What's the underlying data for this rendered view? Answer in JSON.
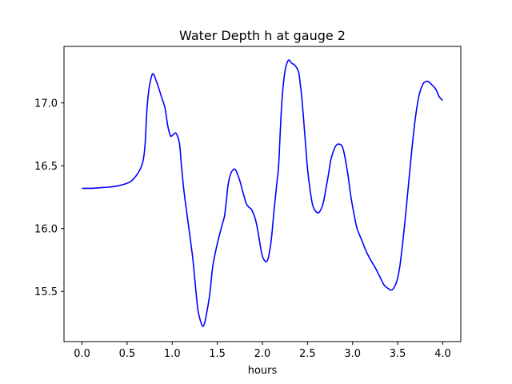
{
  "chart_data": {
    "type": "line",
    "title": "Water Depth h at gauge 2",
    "xlabel": "hours",
    "ylabel": "",
    "xlim": [
      -0.2,
      4.2
    ],
    "ylim": [
      15.1,
      17.45
    ],
    "grid": false,
    "xticks": [
      0.0,
      0.5,
      1.0,
      1.5,
      2.0,
      2.5,
      3.0,
      3.5,
      4.0
    ],
    "xtick_labels": [
      "0.0",
      "0.5",
      "1.0",
      "1.5",
      "2.0",
      "2.5",
      "3.0",
      "3.5",
      "4.0"
    ],
    "yticks": [
      15.5,
      16.0,
      16.5,
      17.0
    ],
    "ytick_labels": [
      "15.5",
      "16.0",
      "16.5",
      "17.0"
    ],
    "series": [
      {
        "color": "#0000ff",
        "x": [
          0.0,
          0.1,
          0.2,
          0.3,
          0.4,
          0.5,
          0.55,
          0.6,
          0.65,
          0.68,
          0.7,
          0.72,
          0.74,
          0.76,
          0.78,
          0.8,
          0.82,
          0.85,
          0.88,
          0.92,
          0.95,
          0.98,
          1.0,
          1.03,
          1.05,
          1.08,
          1.1,
          1.13,
          1.17,
          1.2,
          1.23,
          1.25,
          1.28,
          1.3,
          1.32,
          1.34,
          1.36,
          1.38,
          1.4,
          1.42,
          1.45,
          1.5,
          1.55,
          1.58,
          1.6,
          1.62,
          1.65,
          1.68,
          1.7,
          1.72,
          1.75,
          1.78,
          1.8,
          1.82,
          1.85,
          1.88,
          1.92,
          1.95,
          1.98,
          2.0,
          2.03,
          2.05,
          2.07,
          2.1,
          2.13,
          2.16,
          2.18,
          2.2,
          2.22,
          2.25,
          2.28,
          2.3,
          2.32,
          2.34,
          2.36,
          2.4,
          2.42,
          2.44,
          2.47,
          2.5,
          2.53,
          2.56,
          2.6,
          2.63,
          2.66,
          2.68,
          2.7,
          2.73,
          2.76,
          2.8,
          2.83,
          2.86,
          2.88,
          2.9,
          2.92,
          2.95,
          2.98,
          3.02,
          3.05,
          3.1,
          3.15,
          3.2,
          3.25,
          3.3,
          3.35,
          3.4,
          3.43,
          3.46,
          3.49,
          3.52,
          3.55,
          3.58,
          3.62,
          3.66,
          3.7,
          3.74,
          3.78,
          3.81,
          3.84,
          3.87,
          3.9,
          3.93,
          3.96,
          4.0
        ],
        "y": [
          16.32,
          16.32,
          16.325,
          16.33,
          16.34,
          16.36,
          16.38,
          16.42,
          16.48,
          16.55,
          16.68,
          16.95,
          17.1,
          17.18,
          17.23,
          17.22,
          17.18,
          17.12,
          17.05,
          16.96,
          16.82,
          16.74,
          16.74,
          16.76,
          16.75,
          16.68,
          16.52,
          16.3,
          16.08,
          15.92,
          15.75,
          15.6,
          15.38,
          15.3,
          15.25,
          15.22,
          15.25,
          15.32,
          15.4,
          15.5,
          15.7,
          15.88,
          16.02,
          16.1,
          16.22,
          16.35,
          16.44,
          16.47,
          16.47,
          16.44,
          16.38,
          16.3,
          16.25,
          16.2,
          16.17,
          16.15,
          16.08,
          15.98,
          15.85,
          15.78,
          15.74,
          15.74,
          15.78,
          15.92,
          16.15,
          16.36,
          16.5,
          16.8,
          17.05,
          17.25,
          17.33,
          17.34,
          17.32,
          17.31,
          17.3,
          17.25,
          17.15,
          17.02,
          16.75,
          16.48,
          16.3,
          16.18,
          16.13,
          16.13,
          16.17,
          16.22,
          16.3,
          16.42,
          16.55,
          16.64,
          16.67,
          16.67,
          16.66,
          16.62,
          16.55,
          16.42,
          16.26,
          16.1,
          16.0,
          15.91,
          15.82,
          15.75,
          15.69,
          15.62,
          15.55,
          15.52,
          15.51,
          15.53,
          15.58,
          15.68,
          15.85,
          16.05,
          16.35,
          16.65,
          16.9,
          17.07,
          17.15,
          17.17,
          17.17,
          17.15,
          17.13,
          17.1,
          17.05,
          17.02
        ]
      }
    ]
  }
}
